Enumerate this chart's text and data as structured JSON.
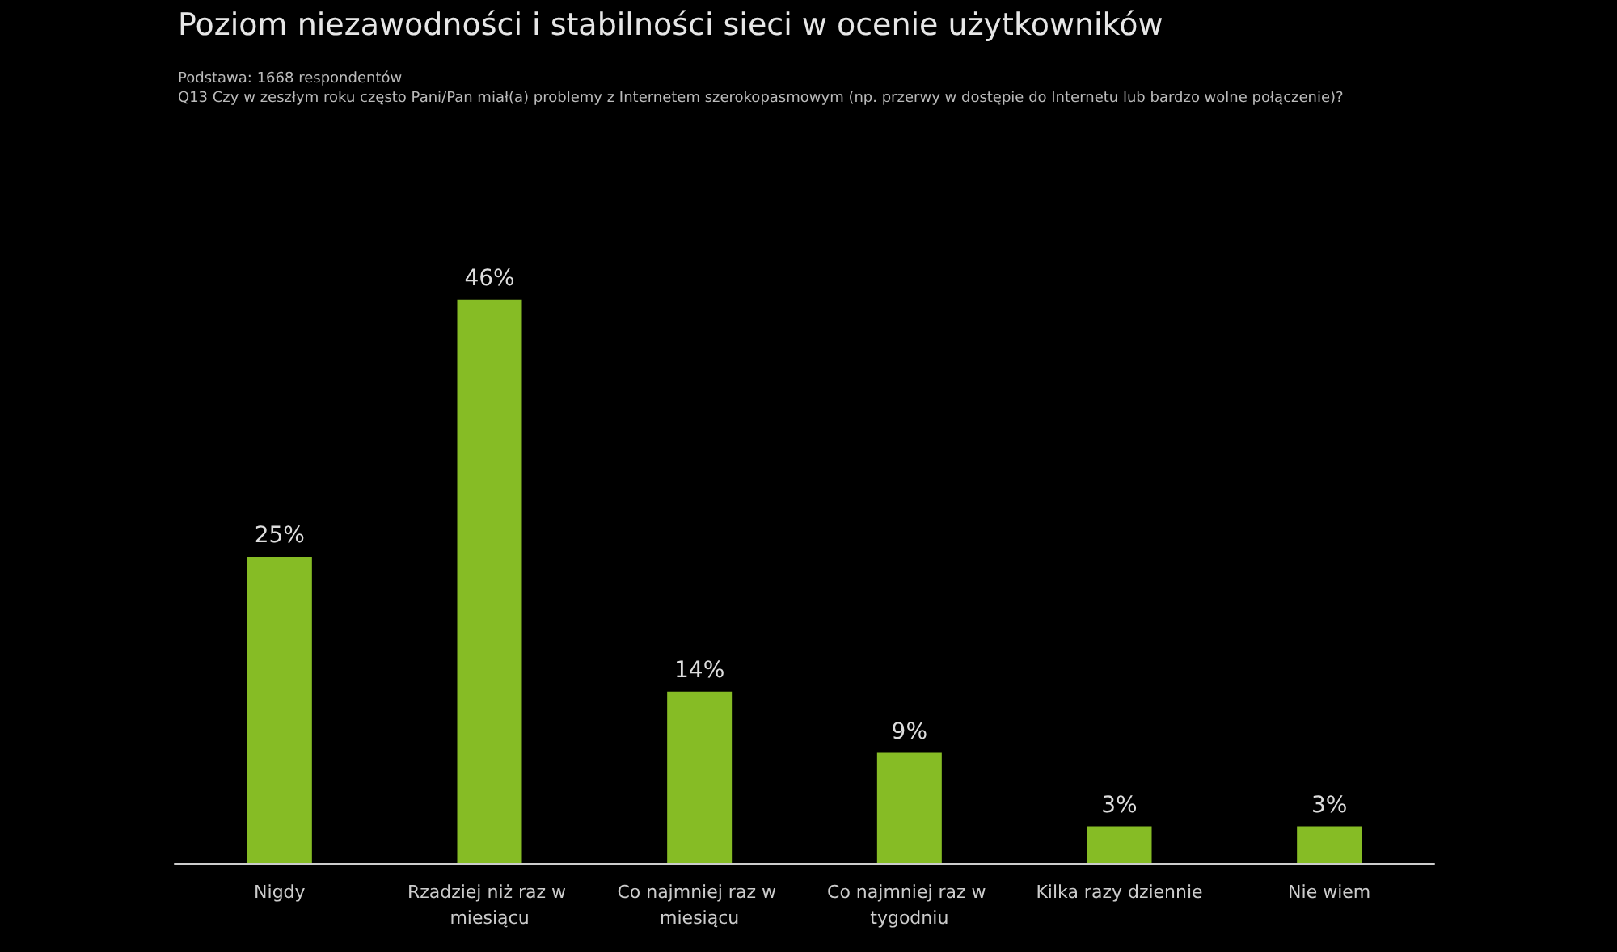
{
  "chart_data": {
    "type": "bar",
    "title": "Poziom niezawodności i stabilności sieci w ocenie użytkowników",
    "subtitle": "Podstawa: 1668 respondentów",
    "annotations": [
      "Q13 Czy w zeszłym roku często Pani/Pan miał(a) problemy z Internetem szerokopasmowym (np. przerwy w dostępie do Internetu lub bardzo wolne połączenie)?"
    ],
    "categories": [
      "Nigdy",
      "Rzadziej niż raz w miesiącu",
      "Co najmniej raz w miesiącu",
      "Co najmniej raz w tygodniu",
      "Kilka razy dziennie",
      "Nie wiem"
    ],
    "values": [
      25,
      46,
      14,
      9,
      3,
      3
    ],
    "value_labels": [
      "25%",
      "46%",
      "14%",
      "9%",
      "3%",
      "3%"
    ],
    "color": "#86bc25"
  }
}
